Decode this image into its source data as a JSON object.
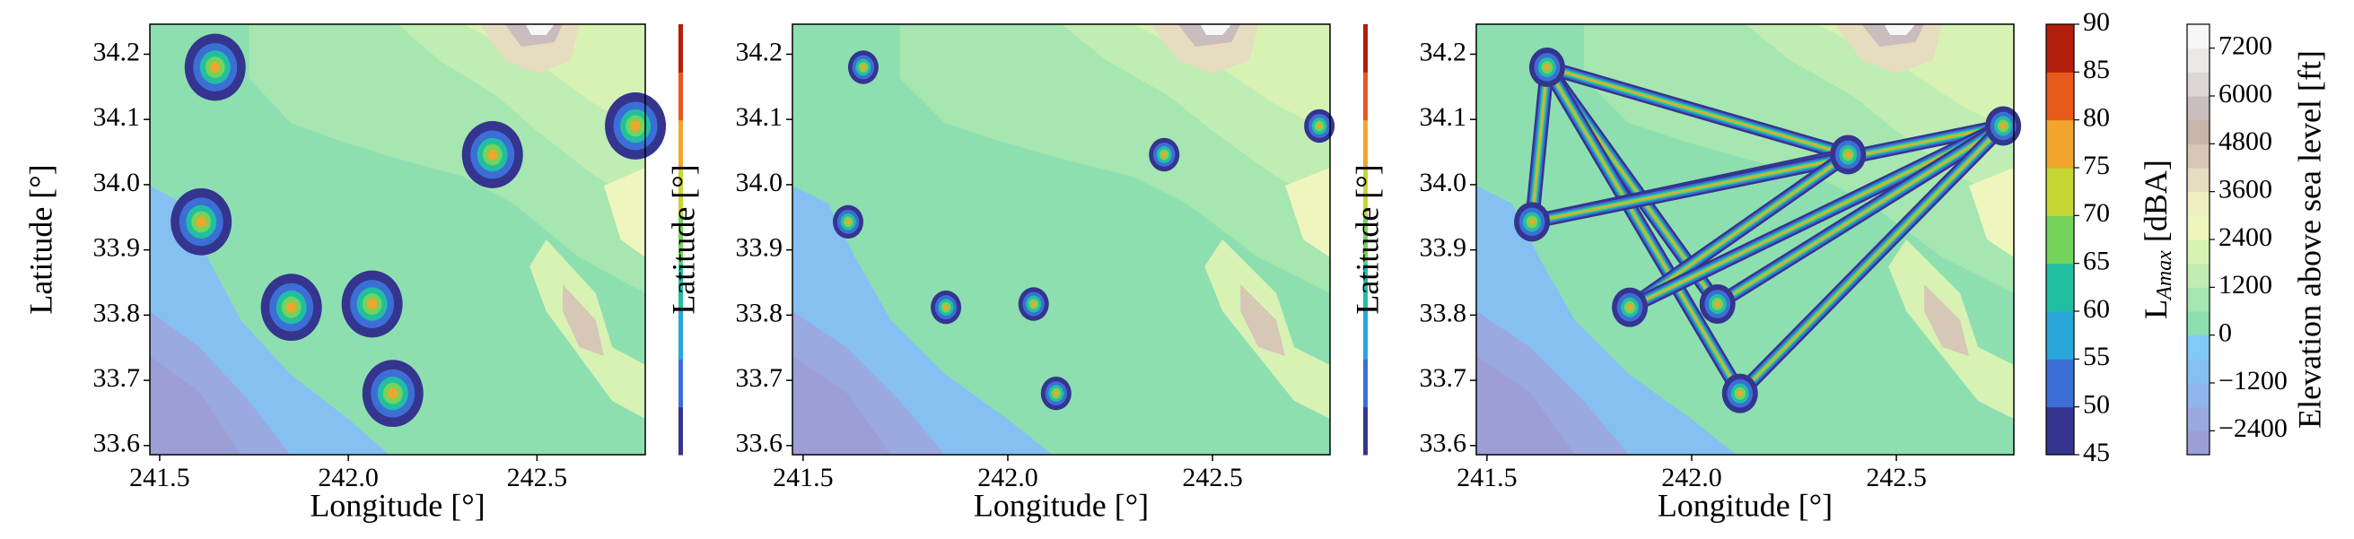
{
  "chart_data": [
    {
      "type": "map",
      "xlabel": "Longitude [°]",
      "ylabel": "Latitude [°]",
      "xlim": [
        241.474,
        242.787
      ],
      "ylim": [
        33.586,
        34.246
      ],
      "xticks": [
        241.5,
        {
          "value": 242,
          "label": "242.0"
        },
        242.5
      ],
      "yticks": [
        33.6,
        33.7,
        33.8,
        33.9,
        {
          "value": 34,
          "label": "34.0"
        },
        34.1,
        34.2
      ],
      "x": [
        241.647,
        242.382,
        242.761,
        241.61,
        241.849,
        242.063,
        242.118
      ],
      "y": [
        34.18,
        34.046,
        34.09,
        33.943,
        33.812,
        33.817,
        33.68
      ]
    },
    {
      "type": "map",
      "xlabel": "Longitude [°]",
      "ylabel": "Latitude [°]",
      "xlim": [
        241.474,
        242.787
      ],
      "ylim": [
        33.586,
        34.246
      ],
      "xticks": [
        241.5,
        {
          "value": 242,
          "label": "242.0"
        },
        242.5
      ],
      "yticks": [
        33.6,
        33.7,
        33.8,
        33.9,
        {
          "value": 34,
          "label": "34.0"
        },
        34.1,
        34.2
      ],
      "x": [
        241.647,
        242.382,
        242.761,
        241.61,
        241.849,
        242.063,
        242.118
      ],
      "y": [
        34.18,
        34.046,
        34.09,
        33.943,
        33.812,
        33.817,
        33.68
      ]
    },
    {
      "type": "map",
      "xlabel": "Longitude [°]",
      "ylabel": "Latitude [°]",
      "xlim": [
        241.474,
        242.787
      ],
      "ylim": [
        33.586,
        34.246
      ],
      "xticks": [
        241.5,
        {
          "value": 242,
          "label": "242.0"
        },
        242.5
      ],
      "yticks": [
        33.6,
        33.7,
        33.8,
        33.9,
        {
          "value": 34,
          "label": "34.0"
        },
        34.1,
        34.2
      ],
      "x": [
        241.647,
        242.382,
        242.761,
        241.61,
        241.849,
        242.063,
        242.118
      ],
      "y": [
        34.18,
        34.046,
        34.09,
        33.943,
        33.812,
        33.817,
        33.68
      ],
      "routes": [
        {
          "x": [
            241.647,
            242.382
          ],
          "y": [
            34.18,
            34.046
          ]
        },
        {
          "x": [
            241.647,
            241.61
          ],
          "y": [
            34.18,
            33.943
          ]
        },
        {
          "x": [
            241.647,
            242.063
          ],
          "y": [
            34.18,
            33.817
          ]
        },
        {
          "x": [
            241.647,
            242.118
          ],
          "y": [
            34.18,
            33.68
          ]
        },
        {
          "x": [
            241.61,
            242.382
          ],
          "y": [
            33.943,
            34.046
          ]
        },
        {
          "x": [
            241.61,
            242.761
          ],
          "y": [
            33.943,
            34.09
          ]
        },
        {
          "x": [
            241.849,
            242.382
          ],
          "y": [
            33.812,
            34.046
          ]
        },
        {
          "x": [
            241.849,
            242.761
          ],
          "y": [
            33.812,
            34.09
          ]
        },
        {
          "x": [
            242.063,
            242.761
          ],
          "y": [
            33.817,
            34.09
          ]
        },
        {
          "x": [
            242.118,
            242.761
          ],
          "y": [
            33.68,
            34.09
          ]
        }
      ]
    },
    {
      "type": "colorbar",
      "label_parts": [
        "L",
        "Amax",
        " [dBA]"
      ],
      "lim": [
        45,
        90
      ],
      "ticks": [
        45,
        50,
        55,
        60,
        65,
        70,
        75,
        80,
        85,
        90
      ],
      "colors": [
        "#35348f",
        "#3b6fd6",
        "#27a6da",
        "#21bfa2",
        "#74d35a",
        "#c6d634",
        "#f2a52c",
        "#e8591c",
        "#b31e0a"
      ]
    },
    {
      "type": "colorbar",
      "label": "Elevation above sea level [ft]",
      "lim": [
        -3000,
        7800
      ],
      "ticks": [
        {
          "value": -2400,
          "label": "−2400"
        },
        {
          "value": -1200,
          "label": "−1200"
        },
        0,
        1200,
        2400,
        3600,
        4800,
        6000,
        7200
      ],
      "colors": [
        "#9b9fd6",
        "#9aa9e0",
        "#8fb6ec",
        "#86c0f2",
        "#7fcbf6",
        "#8ddfb0",
        "#a6e6b0",
        "#c0edb3",
        "#d8f2b4",
        "#eef5bd",
        "#f0efc4",
        "#e6dcc0",
        "#d6c7b6",
        "#c7b4aa",
        "#c9bdbd",
        "#dcd6d6",
        "#ebe8e8",
        "#f7f7f7"
      ]
    }
  ]
}
